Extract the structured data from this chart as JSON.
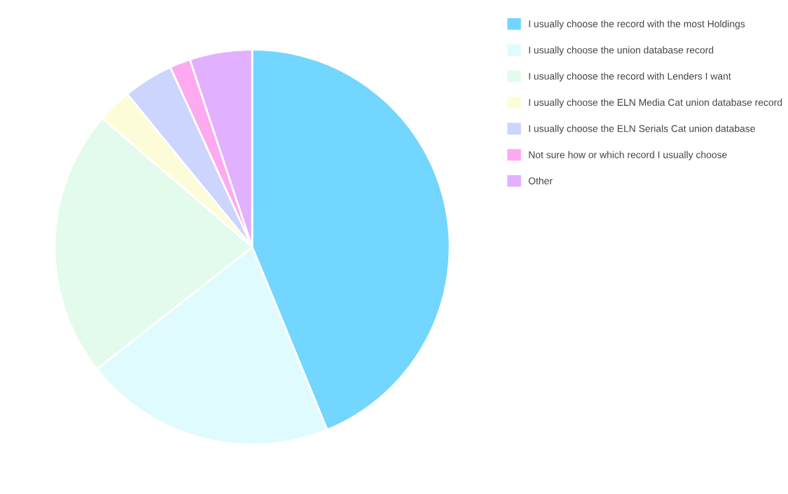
{
  "chart_data": {
    "type": "pie",
    "categories": [
      "I usually choose the record with the most Holdings",
      "I usually choose the union database record",
      "I usually choose the record with Lenders I want",
      "I usually choose the ELN Media Cat union database record",
      "I usually choose the ELN Serials Cat union database",
      "Not sure how or which record I usually choose",
      "Other"
    ],
    "values": [
      43.8,
      20.6,
      21.9,
      2.8,
      4.1,
      1.7,
      5.1
    ],
    "colors": [
      "#72d6fe",
      "#e0fbfe",
      "#e3fbec",
      "#fcfcd9",
      "#cbd5fd",
      "#fdaaf0",
      "#e1b0fe"
    ],
    "legend": "right"
  }
}
